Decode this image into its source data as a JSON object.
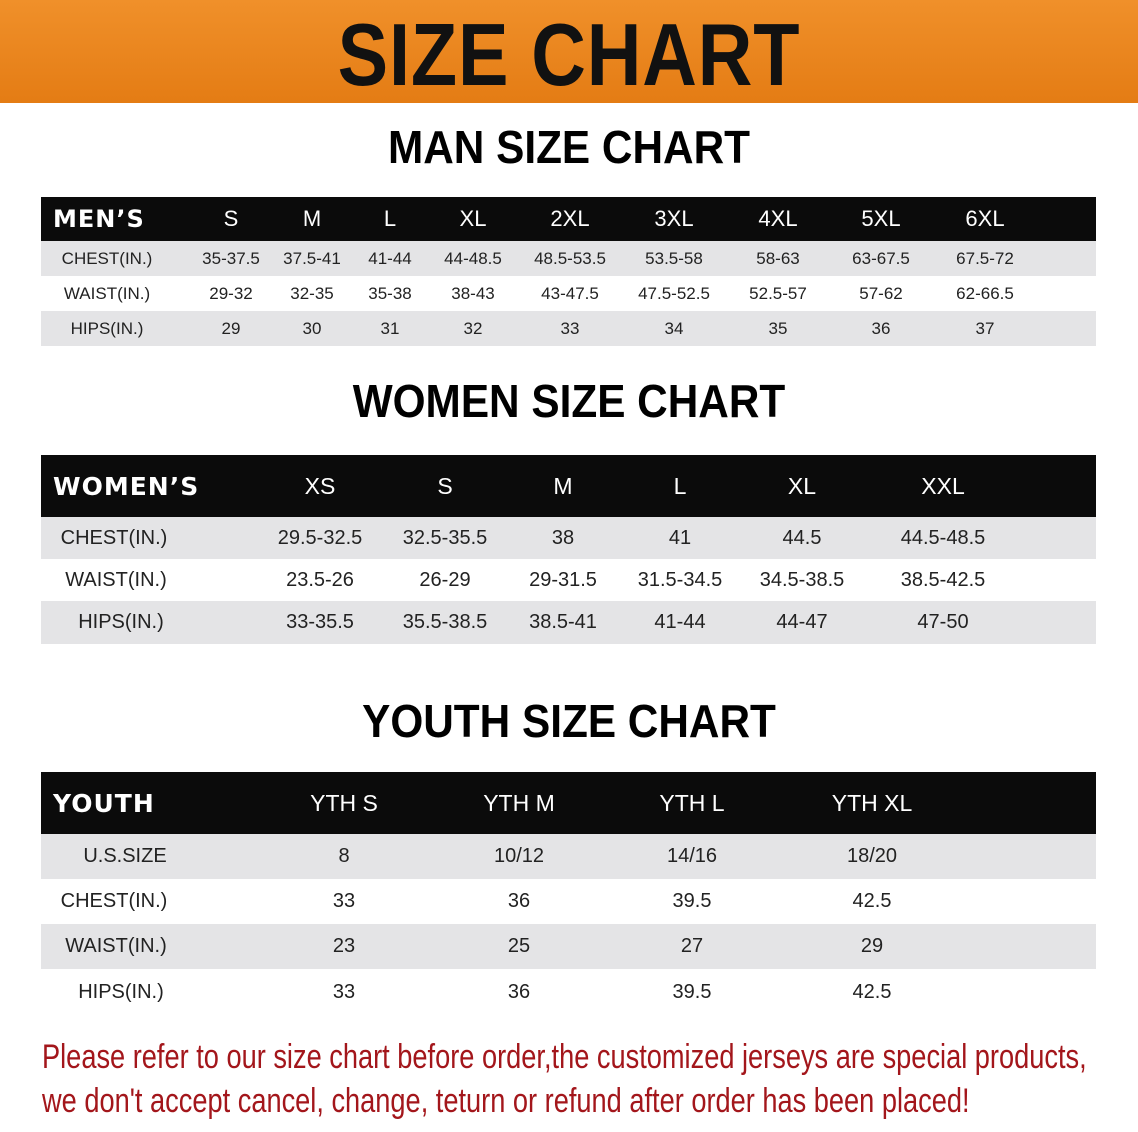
{
  "banner": {
    "title": "SIZE CHART",
    "color": "#e8831c"
  },
  "men": {
    "title": "MAN SIZE CHART",
    "header": [
      "MEN’S",
      "S",
      "M",
      "L",
      "XL",
      "2XL",
      "3XL",
      "4XL",
      "5XL",
      "6XL"
    ],
    "rows": [
      [
        "CHEST(IN.)",
        "35-37.5",
        "37.5-41",
        "41-44",
        "44-48.5",
        "48.5-53.5",
        "53.5-58",
        "58-63",
        "63-67.5",
        "67.5-72"
      ],
      [
        "WAIST(IN.)",
        "29-32",
        "32-35",
        "35-38",
        "38-43",
        "43-47.5",
        "47.5-52.5",
        "52.5-57",
        "57-62",
        "62-66.5"
      ],
      [
        "HIPS(IN.)",
        "29",
        "30",
        "31",
        "32",
        "33",
        "34",
        "35",
        "36",
        "37"
      ]
    ]
  },
  "women": {
    "title": "WOMEN SIZE CHART",
    "header": [
      "WOMEN’S",
      "XS",
      "S",
      "M",
      "L",
      "XL",
      "XXL"
    ],
    "rows": [
      [
        "CHEST(IN.)",
        "29.5-32.5",
        "32.5-35.5",
        "38",
        "41",
        "44.5",
        "44.5-48.5"
      ],
      [
        "WAIST(IN.)",
        "23.5-26",
        "26-29",
        "29-31.5",
        "31.5-34.5",
        "34.5-38.5",
        "38.5-42.5"
      ],
      [
        "HIPS(IN.)",
        "33-35.5",
        "35.5-38.5",
        "38.5-41",
        "41-44",
        "44-47",
        "47-50"
      ]
    ]
  },
  "youth": {
    "title": "YOUTH SIZE CHART",
    "header": [
      "YOUTH",
      "YTH S",
      "YTH M",
      "YTH L",
      "YTH XL"
    ],
    "rows": [
      [
        "U.S.SIZE",
        "8",
        "10/12",
        "14/16",
        "18/20"
      ],
      [
        "CHEST(IN.)",
        "33",
        "36",
        "39.5",
        "42.5"
      ],
      [
        "WAIST(IN.)",
        "23",
        "25",
        "27",
        "29"
      ],
      [
        "HIPS(IN.)",
        "33",
        "36",
        "39.5",
        "42.5"
      ]
    ]
  },
  "notice": {
    "line1": "Please refer to our size chart before order,the customized jerseys are special products,",
    "line2": "we don't accept cancel, change, teturn or refund after order has been placed!",
    "color": "#a3161b"
  }
}
